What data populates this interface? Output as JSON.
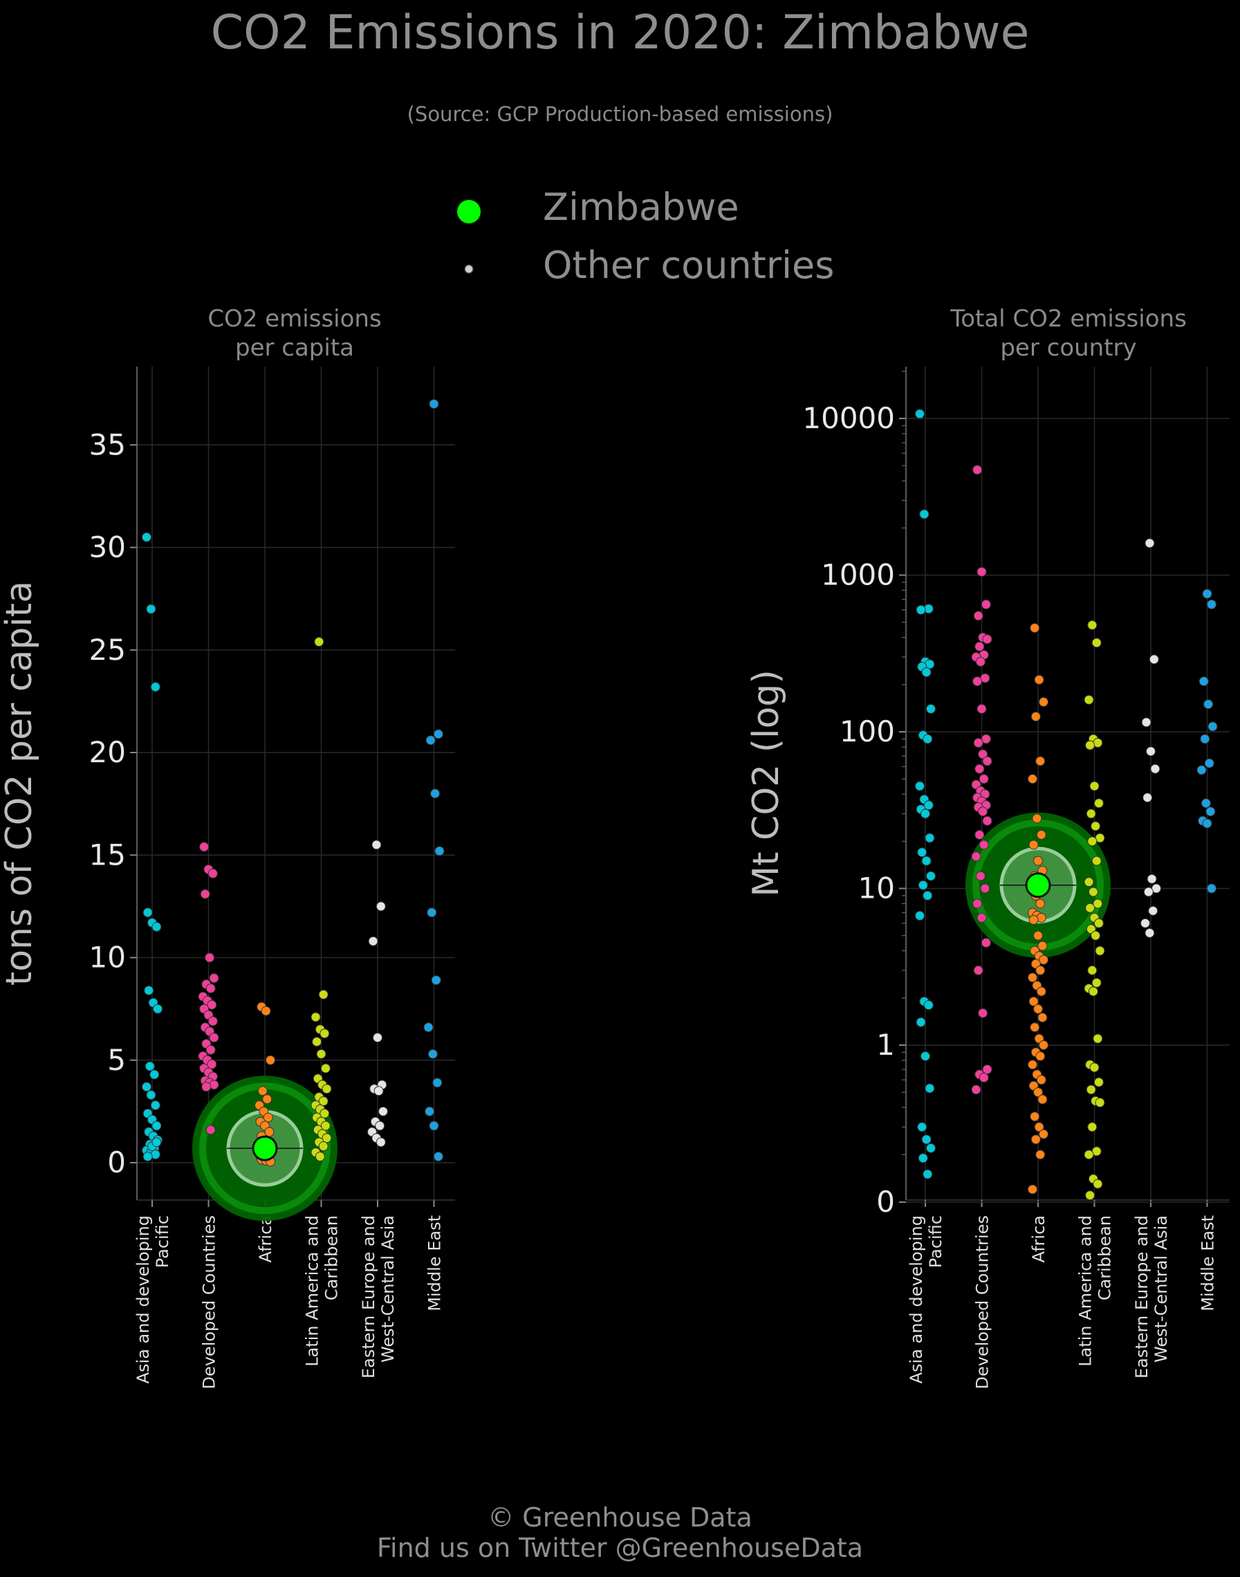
{
  "title": "CO2 Emissions in 2020: Zimbabwe",
  "subtitle": "(Source: GCP Production-based emissions)",
  "legend": {
    "highlight_label": "Zimbabwe",
    "others_label": "Other countries",
    "highlight_color": "#00ff00",
    "others_color": "#d0d0d0"
  },
  "footer": {
    "line1": "© Greenhouse Data",
    "line2": "Find us on Twitter @GreenhouseData"
  },
  "colors": {
    "Asia and developing Pacific": "#00c8d8",
    "Developed Countries": "#f0409a",
    "Africa": "#ff8418",
    "Latin America and Caribbean": "#c8dc14",
    "Eastern Europe and West-Central Asia": "#e4e4e4",
    "Middle East": "#1ea0e0"
  },
  "chart_data": [
    {
      "type": "scatter",
      "title": "CO2 emissions\nper capita",
      "ylabel": "tons of CO2 per capita",
      "xlabel": "",
      "ylim": [
        -1.8,
        39
      ],
      "yticks": [
        0,
        5,
        10,
        15,
        20,
        25,
        30,
        35
      ],
      "yticklabels": [
        "0",
        "5",
        "10",
        "15",
        "20",
        "25",
        "30",
        "35"
      ],
      "grid": true,
      "categories": [
        "Asia and developing\nPacific",
        "Developed Countries",
        "Africa",
        "Latin America and\nCaribbean",
        "Eastern Europe and\nWest-Central Asia",
        "Middle East"
      ],
      "highlight": {
        "name": "Zimbabwe",
        "category": "Africa",
        "value": 0.7
      },
      "series": [
        {
          "category": "Asia and developing\nPacific",
          "values": [
            30.5,
            27.0,
            23.2,
            12.2,
            11.7,
            11.5,
            8.4,
            7.8,
            7.5,
            4.7,
            4.3,
            3.7,
            3.3,
            2.8,
            2.4,
            2.1,
            1.8,
            1.5,
            1.3,
            1.1,
            0.9,
            0.7,
            0.6,
            0.5,
            0.4,
            0.3,
            0.8,
            1.0
          ]
        },
        {
          "category": "Developed Countries",
          "values": [
            15.4,
            14.3,
            14.1,
            13.1,
            10.0,
            9.0,
            8.7,
            8.5,
            8.1,
            7.9,
            7.7,
            7.5,
            7.2,
            6.9,
            6.6,
            6.4,
            6.1,
            5.8,
            5.5,
            5.2,
            5.0,
            4.8,
            4.6,
            4.4,
            4.2,
            4.0,
            3.9,
            3.8,
            3.7,
            1.6
          ]
        },
        {
          "category": "Africa",
          "values": [
            7.6,
            7.4,
            5.0,
            3.5,
            3.1,
            2.8,
            2.5,
            2.2,
            2.0,
            1.8,
            1.5,
            1.3,
            1.1,
            1.0,
            0.9,
            0.8,
            0.6,
            0.5,
            0.4,
            0.3,
            0.25,
            0.2,
            0.15,
            0.1,
            0.05
          ]
        },
        {
          "category": "Latin America and\nCaribbean",
          "values": [
            25.4,
            8.2,
            7.1,
            6.5,
            6.3,
            5.9,
            5.3,
            4.6,
            4.1,
            3.8,
            3.6,
            3.2,
            3.0,
            2.8,
            2.6,
            2.4,
            2.2,
            2.0,
            1.8,
            1.6,
            1.4,
            1.2,
            1.0,
            0.8,
            0.5,
            0.3
          ]
        },
        {
          "category": "Eastern Europe and\nWest-Central Asia",
          "values": [
            15.5,
            12.5,
            10.8,
            6.1,
            3.8,
            3.6,
            3.5,
            2.5,
            2.0,
            1.8,
            1.5,
            1.2,
            1.0
          ]
        },
        {
          "category": "Middle East",
          "values": [
            37.0,
            20.9,
            20.6,
            18.0,
            15.2,
            12.2,
            8.9,
            6.6,
            5.3,
            3.9,
            2.5,
            1.8,
            0.3
          ]
        }
      ]
    },
    {
      "type": "scatter",
      "title": "Total CO2 emissions\nper country",
      "ylabel": "Mt CO2 (log)",
      "xlabel": "",
      "yscale": "log",
      "yticks": [
        0,
        1,
        10,
        100,
        1000,
        10000
      ],
      "yticklabels": [
        "0",
        "1",
        "10",
        "100",
        "1000",
        "10000"
      ],
      "grid": true,
      "categories": [
        "Asia and developing\nPacific",
        "Developed Countries",
        "Africa",
        "Latin America and\nCaribbean",
        "Eastern Europe and\nWest-Central Asia",
        "Middle East"
      ],
      "highlight": {
        "name": "Zimbabwe",
        "category": "Africa",
        "value": 10.5
      },
      "series": [
        {
          "category": "Asia and developing\nPacific",
          "values": [
            10700,
            2450,
            610,
            600,
            280,
            270,
            260,
            240,
            140,
            95,
            90,
            45,
            37,
            34,
            32,
            30,
            21,
            17,
            15,
            12,
            10.5,
            9,
            6.7,
            1.9,
            1.8,
            1.4,
            0.85,
            0.53,
            0.3,
            0.25,
            0.22,
            0.19,
            0.15
          ]
        },
        {
          "category": "Developed Countries",
          "values": [
            4700,
            1050,
            650,
            550,
            400,
            390,
            350,
            310,
            300,
            280,
            220,
            210,
            140,
            90,
            85,
            72,
            65,
            58,
            50,
            46,
            42,
            40,
            38,
            36,
            34,
            33,
            31,
            27,
            22,
            19,
            16,
            12,
            10,
            8,
            6.5,
            4.5,
            3,
            1.6,
            0.7,
            0.65,
            0.62,
            0.52
          ]
        },
        {
          "category": "Africa",
          "values": [
            460,
            215,
            155,
            125,
            65,
            50,
            28,
            22,
            19,
            15,
            13,
            12,
            11,
            10,
            9,
            8,
            7,
            6.7,
            6.5,
            6.3,
            5,
            4.3,
            4,
            3.7,
            3.5,
            3.3,
            3,
            2.7,
            2.4,
            2.2,
            1.9,
            1.7,
            1.5,
            1.3,
            1.1,
            1,
            0.9,
            0.85,
            0.75,
            0.65,
            0.6,
            0.55,
            0.5,
            0.45,
            0.35,
            0.3,
            0.27,
            0.25,
            0.2,
            0.12
          ]
        },
        {
          "category": "Latin America and\nCaribbean",
          "values": [
            480,
            370,
            160,
            90,
            85,
            82,
            45,
            35,
            30,
            25,
            21,
            20,
            15,
            11,
            9.5,
            8,
            7.5,
            6.5,
            6,
            5.5,
            5,
            4,
            3,
            2.5,
            2.3,
            2.2,
            1.1,
            0.75,
            0.72,
            0.58,
            0.52,
            0.44,
            0.43,
            0.3,
            0.21,
            0.2,
            0.14,
            0.13,
            0.11
          ]
        },
        {
          "category": "Eastern Europe and\nWest-Central Asia",
          "values": [
            1600,
            290,
            115,
            75,
            58,
            38,
            11.5,
            10,
            9.5,
            7.2,
            6,
            5.2
          ]
        },
        {
          "category": "Middle East",
          "values": [
            760,
            650,
            210,
            150,
            108,
            90,
            63,
            57,
            35,
            31,
            27,
            26,
            10
          ]
        }
      ]
    }
  ]
}
